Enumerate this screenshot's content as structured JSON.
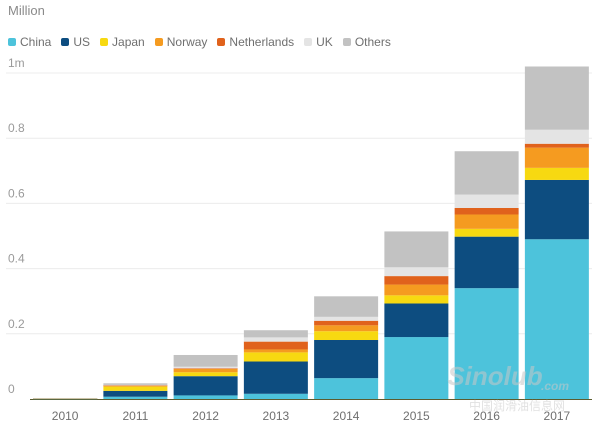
{
  "chart_data": {
    "type": "bar",
    "stacked": true,
    "title": "",
    "unit_label": "Million",
    "xlabel": "",
    "ylabel": "",
    "categories": [
      "2010",
      "2011",
      "2012",
      "2013",
      "2014",
      "2015",
      "2016",
      "2017"
    ],
    "ylim": [
      0,
      1
    ],
    "yticks": [
      {
        "value": 0,
        "label": "0"
      },
      {
        "value": 0.2,
        "label": "0.2"
      },
      {
        "value": 0.4,
        "label": "0.4"
      },
      {
        "value": 0.6,
        "label": "0.6"
      },
      {
        "value": 0.8,
        "label": "0.8"
      },
      {
        "value": 1,
        "label": "1m"
      }
    ],
    "grid": true,
    "legend_position": "top-left",
    "series": [
      {
        "name": "China",
        "color": "#4dc3db",
        "values": [
          0.0015,
          0.007,
          0.011,
          0.016,
          0.064,
          0.19,
          0.34,
          0.49
        ]
      },
      {
        "name": "US",
        "color": "#0d4d80",
        "values": [
          0.0008,
          0.018,
          0.059,
          0.099,
          0.117,
          0.103,
          0.158,
          0.182
        ]
      },
      {
        "name": "Japan",
        "color": "#f7d911",
        "values": [
          0.0001,
          0.013,
          0.012,
          0.028,
          0.027,
          0.025,
          0.024,
          0.037
        ]
      },
      {
        "name": "Norway",
        "color": "#f59b20",
        "values": [
          0.0002,
          0.004,
          0.011,
          0.009,
          0.018,
          0.033,
          0.044,
          0.062
        ]
      },
      {
        "name": "Netherlands",
        "color": "#e0621c",
        "values": [
          0,
          0.0002,
          0.001,
          0.024,
          0.014,
          0.026,
          0.02,
          0.012
        ]
      },
      {
        "name": "UK",
        "color": "#e4e4e4",
        "values": [
          0.0001,
          0.001,
          0.005,
          0.013,
          0.012,
          0.027,
          0.041,
          0.043
        ]
      },
      {
        "name": "Others",
        "color": "#c2c2c2",
        "values": [
          0.0004,
          0.005,
          0.036,
          0.022,
          0.063,
          0.11,
          0.133,
          0.194
        ]
      }
    ]
  },
  "watermark": {
    "logo_text": "Sinolub",
    "logo_suffix": ".com",
    "caption": "中国润滑油信息网"
  }
}
